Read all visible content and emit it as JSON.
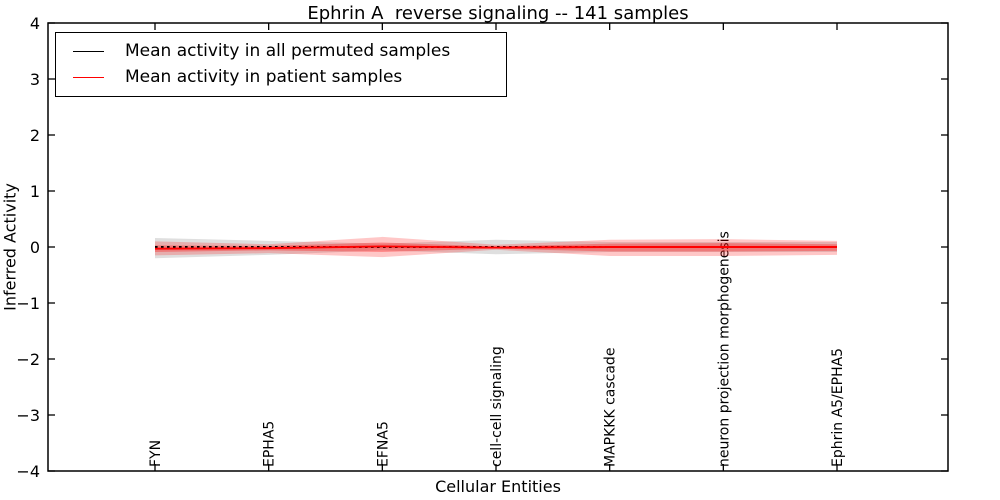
{
  "chart_data": {
    "type": "line",
    "title": "Ephrin A  reverse signaling -- 141 samples",
    "xlabel": "Cellular Entities",
    "ylabel": "Inferred Activity",
    "ylim": [
      -4,
      4
    ],
    "ytick_values": [
      4,
      3,
      2,
      1,
      0,
      -1,
      -2,
      -3,
      -4
    ],
    "ytick_labels": [
      "4",
      "3",
      "2",
      "1",
      "0",
      "−1",
      "−2",
      "−3",
      "−4"
    ],
    "categories": [
      "FYN",
      "EPHA5",
      "EFNA5",
      "cell-cell signaling",
      "MAPKKK cascade",
      "neuron projection morphogenesis",
      "Ephrin A5/EPHA5"
    ],
    "grid": false,
    "legend_position": "upper left",
    "legend": [
      {
        "label": "Mean activity in all permuted samples",
        "color": "#000000"
      },
      {
        "label": "Mean activity in patient samples",
        "color": "#ff0000"
      }
    ],
    "series": [
      {
        "name": "Mean activity in all permuted samples",
        "color": "#000000",
        "style": "dotted",
        "values": [
          0,
          0,
          0,
          0,
          0,
          0,
          0
        ]
      },
      {
        "name": "Mean activity in patient samples",
        "color": "#ff0000",
        "style": "solid",
        "values": [
          -0.03,
          -0.02,
          0.01,
          -0.01,
          0,
          0,
          0
        ]
      }
    ],
    "bands": [
      {
        "name": "permuted-std-band",
        "color": "rgba(110,110,110,0.22)",
        "upper": [
          0.16,
          0.11,
          0.06,
          0.13,
          0.09,
          0.09,
          0.09
        ],
        "lower": [
          -0.2,
          -0.14,
          -0.06,
          -0.13,
          -0.09,
          -0.09,
          -0.09
        ]
      },
      {
        "name": "patient-std-band",
        "color": "rgba(255,0,0,0.22)",
        "upper": [
          0.1,
          0.05,
          0.18,
          0.04,
          0.13,
          0.14,
          0.11
        ],
        "lower": [
          -0.15,
          -0.11,
          -0.18,
          -0.05,
          -0.16,
          -0.16,
          -0.14
        ]
      },
      {
        "name": "patient-inner-band",
        "color": "rgba(255,0,0,0.3)",
        "upper": [
          0.03,
          0.02,
          0.08,
          0.01,
          0.06,
          0.07,
          0.05
        ],
        "lower": [
          -0.09,
          -0.06,
          -0.09,
          -0.03,
          -0.08,
          -0.08,
          -0.07
        ]
      }
    ]
  }
}
